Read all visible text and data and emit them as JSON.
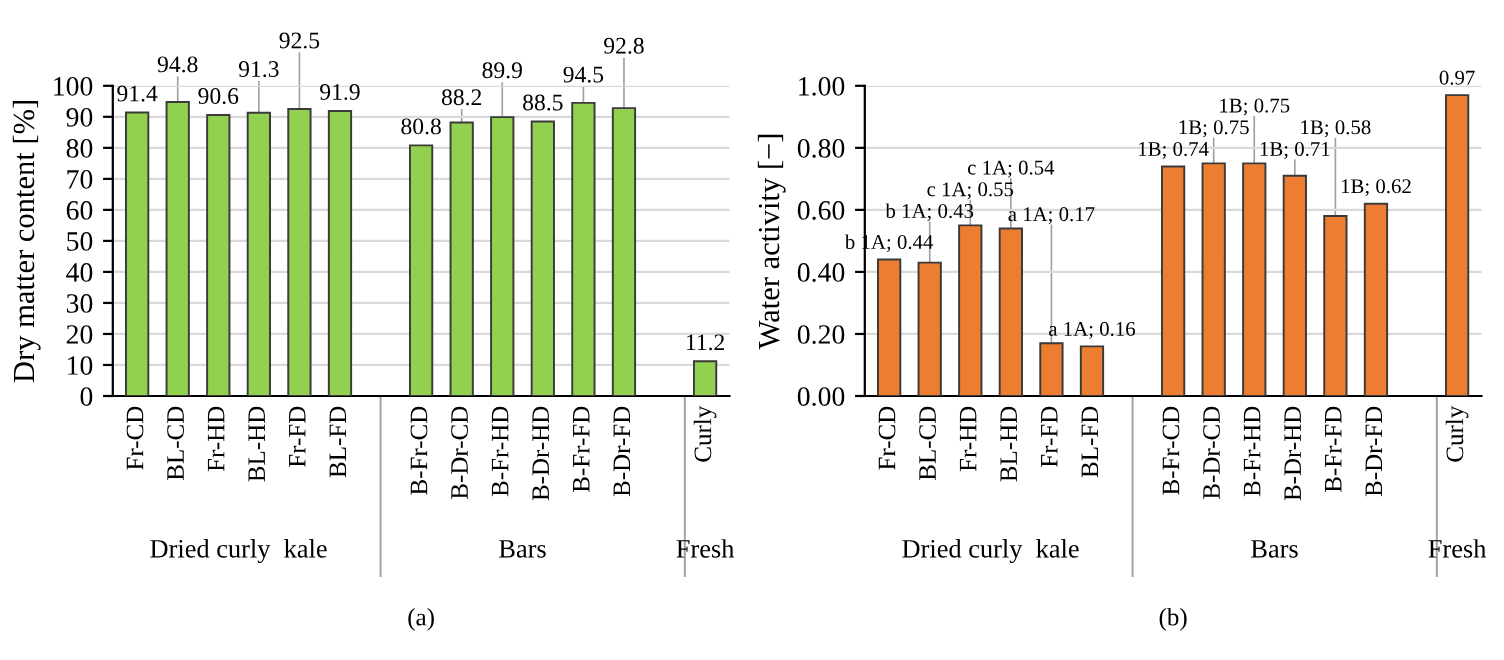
{
  "chart_data": [
    {
      "type": "bar",
      "title": "(a)",
      "ylabel": "Dry matter content [%]",
      "categories": [
        "Fr-CD",
        "BL-CD",
        "Fr-HD",
        "BL-HD",
        "Fr-FD",
        "BL-FD",
        null,
        "B-Fr-CD",
        "B-Dr-CD",
        "B-Fr-HD",
        "B-Dr-HD",
        "B-Fr-FD",
        "B-Dr-FD",
        null,
        "Curly"
      ],
      "values": [
        91.4,
        94.8,
        90.6,
        91.3,
        92.5,
        91.9,
        null,
        80.8,
        88.2,
        89.9,
        88.5,
        94.5,
        92.8,
        null,
        11.2
      ],
      "color": "#92d050",
      "ylim": [
        0,
        100
      ],
      "yticks": [
        0,
        10,
        20,
        30,
        40,
        50,
        60,
        70,
        80,
        90,
        100
      ],
      "grid": "y",
      "data_labels": true,
      "annotations": [
        "Dried curly  kale",
        "Bars",
        "Fresh"
      ]
    },
    {
      "type": "bar",
      "title": "(b)",
      "ylabel": "Water activity [−]",
      "categories": [
        "Fr-CD",
        "BL-CD",
        "Fr-HD",
        "BL-HD",
        "Fr-FD",
        "BL-FD",
        null,
        "B-Fr-CD",
        "B-Dr-CD",
        "B-Fr-HD",
        "B-Dr-HD",
        "B-Fr-FD",
        "B-Dr-FD",
        null,
        "Curly"
      ],
      "values": [
        0.44,
        0.43,
        0.55,
        0.54,
        0.17,
        0.16,
        null,
        0.74,
        0.75,
        0.75,
        0.71,
        0.58,
        0.62,
        null,
        0.97
      ],
      "value_labels": [
        "b 1A; 0.44",
        "b 1A; 0.43",
        "c 1A; 0.55",
        "c 1A; 0.54",
        "a 1A; 0.17",
        "a 1A; 0.16",
        null,
        "1B; 0.74",
        "1B; 0.75",
        "1B; 0.75",
        "1B; 0.71",
        "1B; 0.58",
        "1B; 0.62",
        null,
        "0.97"
      ],
      "color": "#ed7d31",
      "ylim": [
        0,
        1.0
      ],
      "yticks": [
        {
          "value": 0,
          "label": "0.00"
        },
        {
          "value": 0.2,
          "label": "0.20"
        },
        {
          "value": 0.4,
          "label": "0.40"
        },
        {
          "value": 0.6,
          "label": "0.60"
        },
        {
          "value": 0.8,
          "label": "0.80"
        },
        {
          "value": 1.0,
          "label": "1.00"
        }
      ],
      "grid": "y",
      "annotations": [
        "Dried curly  kale",
        "Bars",
        "Fresh"
      ]
    }
  ]
}
